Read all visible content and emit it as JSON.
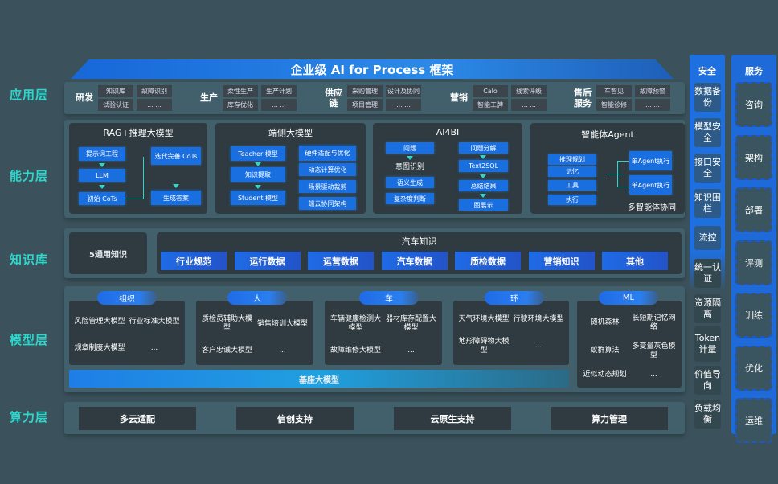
{
  "title": "企业级 AI for Process 框架",
  "layers": {
    "app": "应用层",
    "capability": "能力层",
    "knowledge": "知识库",
    "model": "模型层",
    "compute": "算力层"
  },
  "app_groups": [
    {
      "label": "研发",
      "cols": [
        [
          "知识库",
          "试验认证"
        ],
        [
          "故障识别",
          "... ..."
        ]
      ]
    },
    {
      "label": "生产",
      "cols": [
        [
          "柔性生产",
          "库存优化"
        ],
        [
          "生产计划",
          "... ..."
        ]
      ]
    },
    {
      "label": "供应链",
      "cols": [
        [
          "采购管理",
          "项目管理"
        ],
        [
          "设计及协同",
          "... ..."
        ]
      ]
    },
    {
      "label": "营销",
      "cols": [
        [
          "Calo",
          "智能工牌"
        ],
        [
          "线索评级",
          "... ..."
        ]
      ]
    },
    {
      "label": "售后服务",
      "cols": [
        [
          "车智见",
          "智能诊修"
        ],
        [
          "故障预警",
          "... ..."
        ]
      ]
    }
  ],
  "capability": {
    "rag": {
      "title": "RAG+推理大模型",
      "prompt": "提示词工程",
      "llm": "LLM",
      "init": "初始 CoTs",
      "iter": "迭代完善 CoTs",
      "answer": "生成答案"
    },
    "edge": {
      "title": "端侧大模型",
      "teacher": "Teacher 模型",
      "extract": "知识提取",
      "student": "Student 模型",
      "right": [
        "硬件适配与优化",
        "动态计算优化",
        "场景驱动裁剪",
        "端云协同架构"
      ]
    },
    "ai4bi": {
      "title": "AI4BI",
      "question": "问题",
      "intent": "意图识别",
      "semantic": "语义生成",
      "complexity": "复杂度判断",
      "right": [
        "问题分解",
        "Text2SQL",
        "总结结果",
        "图展示"
      ]
    },
    "agent": {
      "title": "智能体Agent",
      "left": [
        "推理规划",
        "记忆",
        "工具",
        "执行"
      ],
      "exec1": "单Agent执行",
      "exec2": "单Agent执行",
      "multi": "多智能体协同"
    }
  },
  "knowledge": {
    "general": "5通用知识",
    "auto_title": "汽车知识",
    "items": [
      "行业规范",
      "运行数据",
      "运营数据",
      "汽车数据",
      "质检数据",
      "营销知识",
      "其他"
    ]
  },
  "model": {
    "groups": [
      {
        "label": "组织",
        "items": [
          "风险管理大模型",
          "行业标准大模型",
          "规章制度大模型",
          "..."
        ]
      },
      {
        "label": "人",
        "items": [
          "质检员辅助大模型",
          "销售培训大模型",
          "客户忠诚大模型",
          "..."
        ]
      },
      {
        "label": "车",
        "items": [
          "车辆健康检测大模型",
          "器材库存配置大模型",
          "故障维修大模型",
          "..."
        ]
      },
      {
        "label": "环",
        "items": [
          "天气环境大模型",
          "行驶环境大模型",
          "地形障碍物大模型",
          "..."
        ]
      },
      {
        "label": "ML",
        "items": [
          "随机森林",
          "长短期记忆网络",
          "蚁群算法",
          "多变量灰色模型",
          "近似动态规划",
          "..."
        ]
      }
    ],
    "base": "基座大模型"
  },
  "compute": [
    "多云适配",
    "信创支持",
    "云原生支持",
    "算力管理"
  ],
  "security": {
    "title": "安全",
    "items": [
      "数据备份",
      "模型安全",
      "接口安全",
      "知识围栏",
      "流控",
      "统一认证",
      "资源隔离",
      "Token计量",
      "价值导向",
      "负载均衡"
    ]
  },
  "service": {
    "title": "服务",
    "items": [
      "咨询",
      "架构",
      "部署",
      "评测",
      "训练",
      "优化",
      "运维"
    ]
  }
}
